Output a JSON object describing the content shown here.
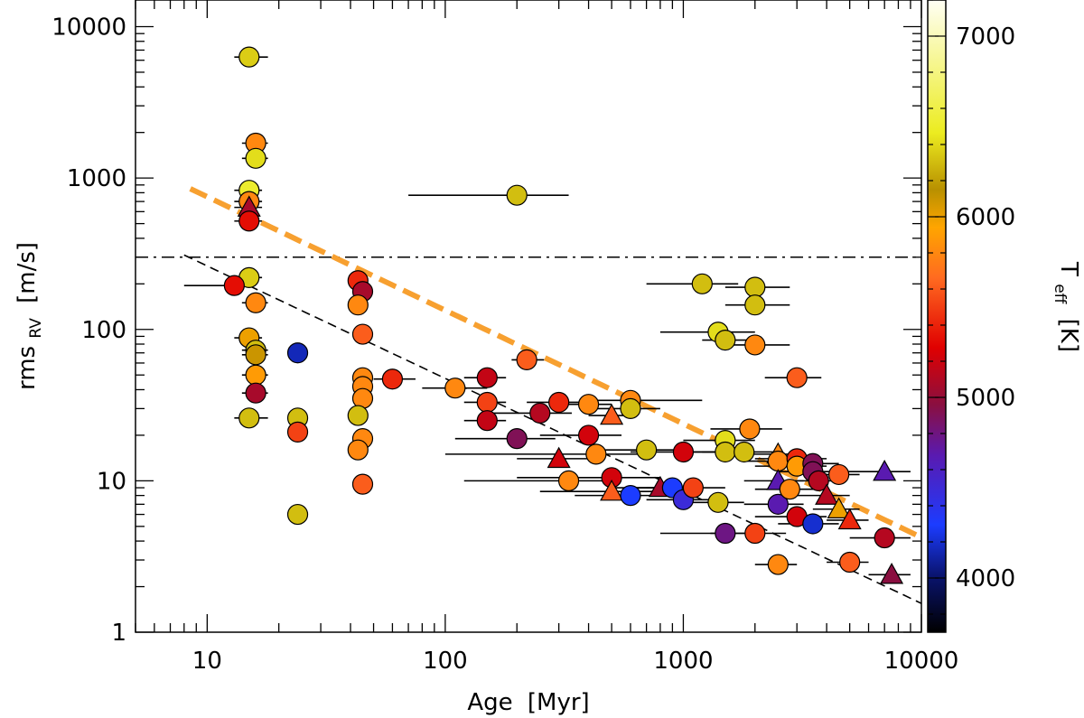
{
  "chart_data": {
    "type": "scatter",
    "x_scale": "log",
    "y_scale": "log",
    "xlim": [
      5,
      10000
    ],
    "ylim": [
      1,
      15000
    ],
    "xlabel_base": "Age",
    "xlabel_unit": "[Myr]",
    "ylabel_base": "rms",
    "ylabel_sub": "RV",
    "ylabel_unit": "[m/s]",
    "x_ticks": [
      "10",
      "100",
      "1000",
      "10000"
    ],
    "y_ticks": [
      "1",
      "10",
      "100",
      "1000",
      "10000"
    ],
    "colorbar": {
      "label_base": "T",
      "label_sub": "eff",
      "label_unit": "[K]",
      "range": [
        3700,
        7200
      ],
      "ticks": [
        "4000",
        "5000",
        "6000",
        "7000"
      ]
    },
    "reference_line_y": 300,
    "points": [
      {
        "x": 15,
        "y": 6300,
        "t": 6350,
        "m": "circle",
        "xe": [
          13,
          18
        ]
      },
      {
        "x": 16,
        "y": 1700,
        "t": 5800,
        "m": "circle",
        "xe": [
          14,
          18
        ]
      },
      {
        "x": 16,
        "y": 1350,
        "t": 6400,
        "m": "circle",
        "xe": [
          14,
          18
        ]
      },
      {
        "x": 15,
        "y": 830,
        "t": 6500,
        "m": "circle",
        "xe": [
          13,
          17
        ]
      },
      {
        "x": 15,
        "y": 700,
        "t": 5800,
        "m": "circle",
        "xe": [
          13,
          17
        ]
      },
      {
        "x": 15,
        "y": 640,
        "t": 5050,
        "m": "triangle",
        "xe": [
          13,
          17
        ]
      },
      {
        "x": 15,
        "y": 520,
        "t": 5300,
        "m": "circle",
        "xe": [
          13,
          17
        ]
      },
      {
        "x": 15,
        "y": 220,
        "t": 6350,
        "m": "circle",
        "xe": [
          13,
          17
        ]
      },
      {
        "x": 13,
        "y": 195,
        "t": 5300,
        "m": "circle",
        "xe": [
          8,
          15
        ]
      },
      {
        "x": 16,
        "y": 150,
        "t": 5800,
        "m": "circle",
        "xe": [
          14,
          18
        ]
      },
      {
        "x": 15,
        "y": 88,
        "t": 6000,
        "m": "circle",
        "xe": [
          13,
          17
        ]
      },
      {
        "x": 16,
        "y": 73,
        "t": 6300,
        "m": "circle",
        "xe": [
          14,
          18
        ]
      },
      {
        "x": 16,
        "y": 68,
        "t": 6100,
        "m": "circle",
        "xe": [
          14,
          18
        ]
      },
      {
        "x": 16,
        "y": 50,
        "t": 5900,
        "m": "circle",
        "xe": [
          14,
          18
        ]
      },
      {
        "x": 16,
        "y": 38,
        "t": 5050,
        "m": "circle",
        "xe": [
          14,
          18
        ]
      },
      {
        "x": 15,
        "y": 26,
        "t": 6300,
        "m": "circle",
        "xe": [
          13,
          18
        ]
      },
      {
        "x": 24,
        "y": 70,
        "t": 4150,
        "m": "circle",
        "xe": [
          22,
          26
        ]
      },
      {
        "x": 24,
        "y": 26,
        "t": 6300,
        "m": "circle",
        "xe": [
          22,
          26
        ]
      },
      {
        "x": 24,
        "y": 21,
        "t": 5500,
        "m": "circle",
        "xe": [
          22,
          26
        ]
      },
      {
        "x": 24,
        "y": 6,
        "t": 6300,
        "m": "circle",
        "xe": [
          22,
          26
        ]
      },
      {
        "x": 43,
        "y": 210,
        "t": 5400,
        "m": "circle",
        "xe": [
          40,
          46
        ]
      },
      {
        "x": 45,
        "y": 178,
        "t": 5050,
        "m": "circle",
        "xe": [
          42,
          48
        ]
      },
      {
        "x": 43,
        "y": 145,
        "t": 5800,
        "m": "circle",
        "xe": [
          40,
          46
        ]
      },
      {
        "x": 45,
        "y": 93,
        "t": 5600,
        "m": "circle",
        "xe": [
          42,
          48
        ]
      },
      {
        "x": 45,
        "y": 48,
        "t": 5800,
        "m": "circle",
        "xe": [
          42,
          48
        ]
      },
      {
        "x": 45,
        "y": 42,
        "t": 5800,
        "m": "circle",
        "xe": [
          42,
          48
        ]
      },
      {
        "x": 45,
        "y": 35,
        "t": 5800,
        "m": "circle",
        "xe": [
          42,
          48
        ]
      },
      {
        "x": 43,
        "y": 27,
        "t": 6300,
        "m": "circle",
        "xe": [
          40,
          46
        ]
      },
      {
        "x": 45,
        "y": 19,
        "t": 5800,
        "m": "circle",
        "xe": [
          42,
          48
        ]
      },
      {
        "x": 43,
        "y": 16,
        "t": 5800,
        "m": "circle",
        "xe": [
          40,
          46
        ]
      },
      {
        "x": 45,
        "y": 9.5,
        "t": 5600,
        "m": "circle",
        "xe": [
          42,
          48
        ]
      },
      {
        "x": 60,
        "y": 47,
        "t": 5400,
        "m": "circle",
        "xe": [
          50,
          75
        ]
      },
      {
        "x": 200,
        "y": 770,
        "t": 6300,
        "m": "circle",
        "xe": [
          70,
          330
        ]
      },
      {
        "x": 220,
        "y": 63,
        "t": 5600,
        "m": "circle",
        "xe": [
          190,
          260
        ]
      },
      {
        "x": 110,
        "y": 41,
        "t": 5800,
        "m": "circle",
        "xe": [
          80,
          150
        ]
      },
      {
        "x": 150,
        "y": 48,
        "t": 5150,
        "m": "circle",
        "xe": [
          120,
          180
        ]
      },
      {
        "x": 150,
        "y": 33,
        "t": 5500,
        "m": "circle",
        "xe": [
          120,
          180
        ]
      },
      {
        "x": 150,
        "y": 25,
        "t": 5150,
        "m": "circle",
        "xe": [
          120,
          180
        ]
      },
      {
        "x": 200,
        "y": 19,
        "t": 4900,
        "m": "circle",
        "xe": [
          110,
          290
        ]
      },
      {
        "x": 250,
        "y": 28,
        "t": 5100,
        "m": "circle",
        "xe": [
          150,
          340
        ]
      },
      {
        "x": 300,
        "y": 33,
        "t": 5400,
        "m": "circle",
        "xe": [
          220,
          380
        ]
      },
      {
        "x": 300,
        "y": 14,
        "t": 5200,
        "m": "triangle",
        "xe": [
          200,
          400
        ]
      },
      {
        "x": 330,
        "y": 10,
        "t": 5800,
        "m": "circle",
        "xe": [
          120,
          540
        ]
      },
      {
        "x": 400,
        "y": 32,
        "t": 5800,
        "m": "circle",
        "xe": [
          300,
          500
        ]
      },
      {
        "x": 400,
        "y": 20,
        "t": 5200,
        "m": "circle",
        "xe": [
          250,
          550
        ]
      },
      {
        "x": 430,
        "y": 15,
        "t": 5800,
        "m": "circle",
        "xe": [
          100,
          760
        ]
      },
      {
        "x": 500,
        "y": 27,
        "t": 5600,
        "m": "triangle",
        "xe": [
          400,
          600
        ]
      },
      {
        "x": 500,
        "y": 10.5,
        "t": 5200,
        "m": "circle",
        "xe": [
          200,
          800
        ]
      },
      {
        "x": 500,
        "y": 8.5,
        "t": 5600,
        "m": "triangle",
        "xe": [
          250,
          750
        ]
      },
      {
        "x": 600,
        "y": 34,
        "t": 5800,
        "m": "circle",
        "xe": [
          400,
          1200
        ]
      },
      {
        "x": 600,
        "y": 30,
        "t": 6300,
        "m": "circle",
        "xe": [
          400,
          800
        ]
      },
      {
        "x": 600,
        "y": 8,
        "t": 4300,
        "m": "circle",
        "xe": [
          350,
          850
        ]
      },
      {
        "x": 700,
        "y": 16,
        "t": 6300,
        "m": "circle",
        "xe": [
          400,
          1000
        ]
      },
      {
        "x": 800,
        "y": 9,
        "t": 5050,
        "m": "triangle",
        "xe": [
          500,
          1100
        ]
      },
      {
        "x": 900,
        "y": 9,
        "t": 4300,
        "m": "circle",
        "xe": [
          600,
          1200
        ]
      },
      {
        "x": 1000,
        "y": 15.5,
        "t": 5200,
        "m": "circle",
        "xe": [
          600,
          1400
        ]
      },
      {
        "x": 1000,
        "y": 7.5,
        "t": 4500,
        "m": "circle",
        "xe": [
          700,
          1300
        ]
      },
      {
        "x": 1100,
        "y": 9,
        "t": 5500,
        "m": "circle",
        "xe": [
          700,
          1500
        ]
      },
      {
        "x": 1200,
        "y": 200,
        "t": 6300,
        "m": "circle",
        "xe": [
          700,
          1700
        ]
      },
      {
        "x": 1400,
        "y": 96,
        "t": 6400,
        "m": "circle",
        "xe": [
          800,
          2000
        ]
      },
      {
        "x": 1500,
        "y": 85,
        "t": 6300,
        "m": "circle",
        "xe": [
          1200,
          2000
        ]
      },
      {
        "x": 1400,
        "y": 7.2,
        "t": 6300,
        "m": "circle",
        "xe": [
          1000,
          1800
        ]
      },
      {
        "x": 1500,
        "y": 18.5,
        "t": 6400,
        "m": "circle",
        "xe": [
          1000,
          2000
        ]
      },
      {
        "x": 1500,
        "y": 15.5,
        "t": 6300,
        "m": "circle",
        "xe": [
          1000,
          2000
        ]
      },
      {
        "x": 1500,
        "y": 4.5,
        "t": 4800,
        "m": "circle",
        "xe": [
          800,
          2200
        ]
      },
      {
        "x": 1800,
        "y": 15.5,
        "t": 6300,
        "m": "circle",
        "xe": [
          1200,
          2500
        ]
      },
      {
        "x": 1900,
        "y": 22,
        "t": 5800,
        "m": "circle",
        "xe": [
          1300,
          2600
        ]
      },
      {
        "x": 2000,
        "y": 190,
        "t": 6300,
        "m": "circle",
        "xe": [
          1500,
          2800
        ]
      },
      {
        "x": 2000,
        "y": 145,
        "t": 6300,
        "m": "circle",
        "xe": [
          1500,
          2800
        ]
      },
      {
        "x": 2000,
        "y": 79,
        "t": 5800,
        "m": "circle",
        "xe": [
          1500,
          2800
        ]
      },
      {
        "x": 2000,
        "y": 4.5,
        "t": 5500,
        "m": "circle",
        "xe": [
          1300,
          2700
        ]
      },
      {
        "x": 2500,
        "y": 15,
        "t": 5800,
        "m": "triangle",
        "xe": [
          1800,
          3200
        ]
      },
      {
        "x": 2500,
        "y": 13.5,
        "t": 5800,
        "m": "circle",
        "xe": [
          1800,
          3200
        ]
      },
      {
        "x": 2500,
        "y": 10,
        "t": 4700,
        "m": "triangle",
        "xe": [
          1800,
          3200
        ]
      },
      {
        "x": 2500,
        "y": 7,
        "t": 4700,
        "m": "circle",
        "xe": [
          1800,
          3200
        ]
      },
      {
        "x": 2500,
        "y": 2.8,
        "t": 5800,
        "m": "circle",
        "xe": [
          2000,
          3000
        ]
      },
      {
        "x": 2800,
        "y": 8.8,
        "t": 5800,
        "m": "circle",
        "xe": [
          2000,
          3600
        ]
      },
      {
        "x": 3000,
        "y": 48,
        "t": 5600,
        "m": "circle",
        "xe": [
          2200,
          3800
        ]
      },
      {
        "x": 3000,
        "y": 14,
        "t": 5400,
        "m": "circle",
        "xe": [
          2000,
          4000
        ]
      },
      {
        "x": 3000,
        "y": 12.5,
        "t": 5900,
        "m": "circle",
        "xe": [
          2000,
          4000
        ]
      },
      {
        "x": 3000,
        "y": 5.8,
        "t": 5200,
        "m": "circle",
        "xe": [
          2000,
          4000
        ]
      },
      {
        "x": 3500,
        "y": 13,
        "t": 4900,
        "m": "circle",
        "xe": [
          2500,
          4500
        ]
      },
      {
        "x": 3500,
        "y": 11.5,
        "t": 4900,
        "m": "circle",
        "xe": [
          2500,
          4500
        ]
      },
      {
        "x": 3500,
        "y": 5.2,
        "t": 4200,
        "m": "circle",
        "xe": [
          2500,
          4500
        ]
      },
      {
        "x": 3700,
        "y": 10,
        "t": 5100,
        "m": "circle",
        "xe": [
          2700,
          4700
        ]
      },
      {
        "x": 4000,
        "y": 8,
        "t": 5100,
        "m": "triangle",
        "xe": [
          3000,
          5000
        ]
      },
      {
        "x": 4500,
        "y": 11,
        "t": 5600,
        "m": "circle",
        "xe": [
          3500,
          5500
        ]
      },
      {
        "x": 4500,
        "y": 6.5,
        "t": 6000,
        "m": "triangle",
        "xe": [
          3500,
          5500
        ]
      },
      {
        "x": 5000,
        "y": 5.5,
        "t": 5400,
        "m": "triangle",
        "xe": [
          4000,
          6000
        ]
      },
      {
        "x": 5000,
        "y": 2.9,
        "t": 5600,
        "m": "circle",
        "xe": [
          4000,
          6000
        ]
      },
      {
        "x": 7000,
        "y": 11.5,
        "t": 4700,
        "m": "triangle",
        "xe": [
          4500,
          9000
        ]
      },
      {
        "x": 7000,
        "y": 4.2,
        "t": 5100,
        "m": "circle",
        "xe": [
          5000,
          9000
        ]
      },
      {
        "x": 7500,
        "y": 2.4,
        "t": 4950,
        "m": "triangle",
        "xe": [
          6000,
          9000
        ]
      }
    ]
  }
}
